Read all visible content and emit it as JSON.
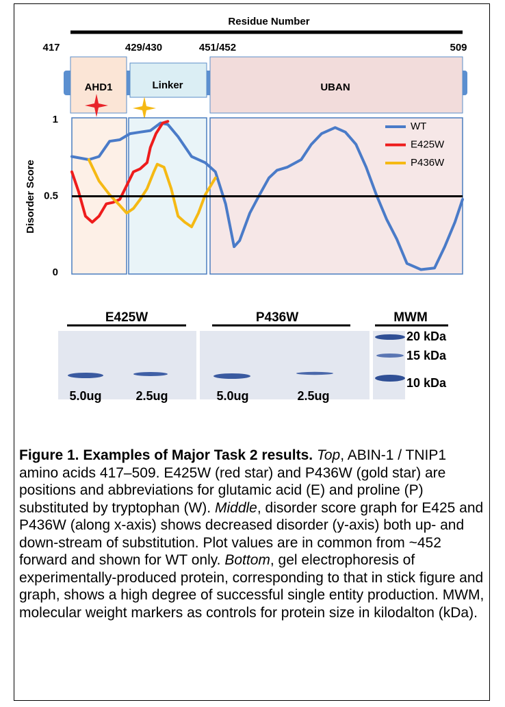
{
  "header": {
    "title": "Residue Number",
    "residues": [
      "417",
      "429/430",
      "451/452",
      "509"
    ]
  },
  "domains": [
    "AHD1",
    "Linker",
    "UBAN"
  ],
  "chart_data": {
    "type": "line",
    "y_label": "Disorder Score",
    "xlim": [
      417,
      509
    ],
    "ylim": [
      0,
      1
    ],
    "yticks": [
      0,
      0.5,
      1
    ],
    "hline": 0.5,
    "legend": "upper right",
    "series": [
      {
        "name": "WT",
        "color": "#4a7bc8",
        "x": [
          417,
          421,
          423.4,
          425.9,
          428.3,
          430.7,
          433.1,
          435.5,
          437.9,
          439.6,
          442,
          445.2,
          448.4,
          450.8,
          453.2,
          455.2,
          456.5,
          458.9,
          461,
          463.4,
          465.3,
          467.7,
          471,
          473.4,
          475.8,
          479,
          481.4,
          483.9,
          486.3,
          488.7,
          491.1,
          493.5,
          495.9,
          499.2,
          502.4,
          504.8,
          507.2,
          509
        ],
        "values": [
          0.76,
          0.74,
          0.76,
          0.86,
          0.87,
          0.91,
          0.92,
          0.93,
          0.98,
          0.97,
          0.89,
          0.76,
          0.72,
          0.66,
          0.45,
          0.17,
          0.21,
          0.39,
          0.5,
          0.62,
          0.67,
          0.69,
          0.74,
          0.84,
          0.91,
          0.95,
          0.92,
          0.84,
          0.69,
          0.51,
          0.35,
          0.22,
          0.06,
          0.02,
          0.03,
          0.17,
          0.33,
          0.48
        ]
      },
      {
        "name": "E425W",
        "color": "#ee1c1c",
        "x": [
          417,
          418.6,
          420.2,
          421.8,
          423.4,
          425.1,
          426.7,
          428.3,
          429.9,
          431.5,
          433.1,
          434.7,
          435.5,
          436.8,
          438.4,
          439.6
        ],
        "values": [
          0.66,
          0.53,
          0.37,
          0.33,
          0.37,
          0.45,
          0.46,
          0.48,
          0.57,
          0.66,
          0.68,
          0.72,
          0.82,
          0.91,
          0.98,
          0.99
        ]
      },
      {
        "name": "P436W",
        "color": "#f5b914",
        "x": [
          421,
          423.4,
          425.9,
          428.3,
          429.9,
          431.5,
          433.1,
          434.7,
          436.3,
          437.1,
          438.7,
          440.4,
          442,
          443.6,
          445.2,
          446.8,
          448.4,
          450.8
        ],
        "values": [
          0.74,
          0.6,
          0.51,
          0.44,
          0.39,
          0.42,
          0.48,
          0.55,
          0.66,
          0.71,
          0.69,
          0.55,
          0.37,
          0.33,
          0.3,
          0.39,
          0.51,
          0.62
        ]
      }
    ]
  },
  "gel": {
    "groups": [
      "E425W",
      "P436W",
      "MWM"
    ],
    "lanes": [
      "5.0ug",
      "2.5ug",
      "5.0ug",
      "2.5ug"
    ],
    "markers": [
      "20 kDa",
      "15 kDa",
      "10 kDa"
    ]
  },
  "caption": [
    "Figure 1. Examples of Major Task 2 results.",
    "Top",
    ", ABIN-1 / TNIP1 amino acids 417–509. E425W (red star) and P436W (gold star) are positions and abbreviations for glutamic acid (E) and proline (P) substituted by tryptophan (W).",
    "Middle",
    ", disorder score graph for E425 and P436W (along x-axis) shows decreased disorder (y-axis) both up- and down-stream of substitution. Plot values are in common from ~452 forward and shown for WT only.",
    "Bottom",
    ", gel electrophoresis of experimentally-produced protein, corresponding to that in stick figure and graph, shows a high degree of successful single entity production. MWM, molecular weight markers as controls for protein size in kilodalton (kDa)."
  ]
}
